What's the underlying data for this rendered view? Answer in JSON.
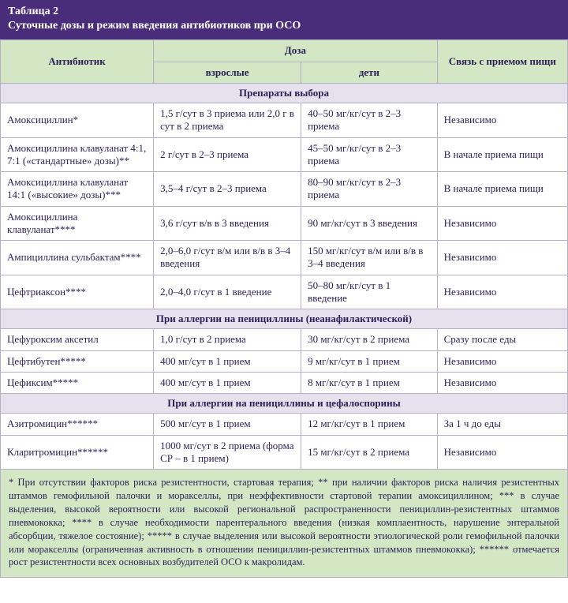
{
  "colors": {
    "header_bg": "#4a2d7a",
    "header_text": "#ffffff",
    "th_bg": "#d3e7c4",
    "section_bg": "#e5e1ed",
    "border": "#b6b0c6",
    "text": "#2b1f56",
    "footnote_bg": "#d3e7c4"
  },
  "title": {
    "label": "Таблица 2",
    "text": "Суточные дозы и режим введения антибиотиков при ОСО"
  },
  "columns": {
    "antibiotic": "Антибиотик",
    "dose_group": "Доза",
    "adults": "взрослые",
    "children": "дети",
    "food": "Связь с приемом пищи"
  },
  "sections": [
    {
      "title": "Препараты выбора",
      "rows": [
        {
          "name": "Амоксициллин*",
          "adults": "1,5 г/сут в 3 приема или 2,0 г в сут в 2 приема",
          "children": "40–50 мг/кг/сут в 2–3 приема",
          "food": "Независимо"
        },
        {
          "name": "Амоксициллина клавуланат 4:1, 7:1 («стандартные» дозы)**",
          "adults": "2 г/сут в 2–3 приема",
          "children": "45–50 мг/кг/сут в 2–3 приема",
          "food": "В начале приема пищи"
        },
        {
          "name": "Амоксициллина клавуланат 14:1 («высокие» дозы)***",
          "adults": "3,5–4 г/сут в 2–3 приема",
          "children": "80–90 мг/кг/сут в 2–3 приема",
          "food": "В начале приема пищи"
        },
        {
          "name": "Амоксициллина клавуланат****",
          "adults": "3,6 г/сут в/в в 3 введения",
          "children": "90 мг/кг/сут в 3 введения",
          "food": "Независимо"
        },
        {
          "name": "Ампициллина сульбактам****",
          "adults": "2,0–6,0 г/сут в/м или в/в в 3–4 введения",
          "children": "150 мг/кг/сут в/м или в/в в 3–4 введения",
          "food": "Независимо"
        },
        {
          "name": "Цефтриаксон****",
          "adults": "2,0–4,0 г/сут в 1 введение",
          "children": "50–80 мг/кг/сут в 1 введение",
          "food": "Независимо"
        }
      ]
    },
    {
      "title": "При аллергии на пенициллины (неанафилактической)",
      "rows": [
        {
          "name": "Цефуроксим аксетил",
          "adults": "1,0 г/сут в 2 приема",
          "children": "30 мг/кг/сут в 2 приема",
          "food": "Сразу после еды"
        },
        {
          "name": "Цефтибутен*****",
          "adults": "400 мг/сут в 1 прием",
          "children": "9 мг/кг/сут в 1 прием",
          "food": "Независимо"
        },
        {
          "name": "Цефиксим*****",
          "adults": "400 мг/сут в 1 прием",
          "children": "8 мг/кг/сут в 1 прием",
          "food": "Независимо"
        }
      ]
    },
    {
      "title": "При аллергии на пенициллины и цефалоспорины",
      "rows": [
        {
          "name": "Азитромицин******",
          "adults": "500 мг/сут в 1 прием",
          "children": "12 мг/кг/сут в 1 прием",
          "food": "За 1 ч до еды"
        },
        {
          "name": "Кларитромицин******",
          "adults": "1000 мг/сут в 2 приема (форма СР – в 1 прием)",
          "children": "15 мг/кг/сут в 2 приема",
          "food": "Независимо"
        }
      ]
    }
  ],
  "footnotes": "* При отсутствии факторов риска резистентности, стартовая терапия; ** при наличии факторов риска наличия резистентных штаммов гемофильной палочки и моракселлы, при неэффективности стартовой терапии амоксициллином; *** в случае выделения, высокой вероятности или высокой региональной распространенности пенициллин-резистентных штаммов пневмококка; **** в случае необходимости парентерального введения (низкая комплаентность, нарушение энтеральной абсорбции, тяжелое состояние); ***** в случае выделения или высокой вероятности этиологической роли гемофильной палочки или моракселлы (ограниченная активность в отношении пенициллин-резистентных штаммов пневмококка); ****** отмечается рост резистентности всех основных возбудителей ОСО к макролидам."
}
